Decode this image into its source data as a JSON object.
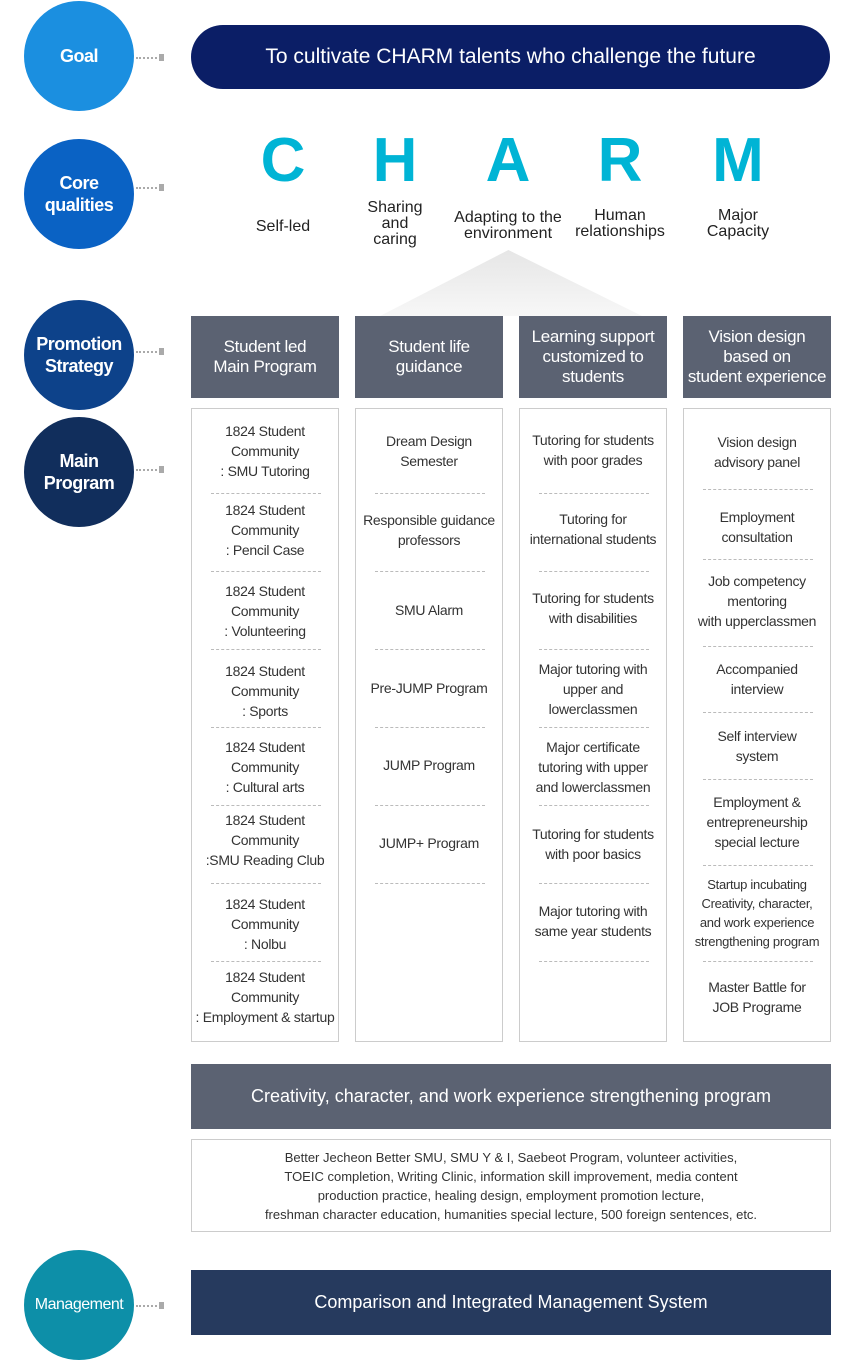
{
  "rows": {
    "goal": "Goal",
    "core": "Core\nqualities",
    "promotion": "Promotion\nStrategy",
    "main": "Main\nProgram",
    "management": "Management"
  },
  "colors": {
    "goal": "#1b8fe0",
    "core": "#0a62c4",
    "promotion": "#0d428a",
    "main": "#112e5c",
    "management": "#0d8fa8",
    "letters": "#00b4d5"
  },
  "goal_text": "To cultivate CHARM talents who challenge the future",
  "qualities": [
    {
      "letter": "C",
      "label": "Self-led"
    },
    {
      "letter": "H",
      "label": "Sharing\nand\ncaring"
    },
    {
      "letter": "A",
      "label": "Adapting to the\nenvironment"
    },
    {
      "letter": "R",
      "label": "Human\nrelationships"
    },
    {
      "letter": "M",
      "label": "Major\nCapacity"
    }
  ],
  "strategies": [
    {
      "title": "Student led\nMain Program",
      "items": [
        "1824 Student\nCommunity\n: SMU  Tutoring",
        "1824 Student\nCommunity\n: Pencil Case",
        "1824 Student\nCommunity\n: Volunteering",
        "1824 Student\nCommunity\n: Sports",
        "1824 Student\nCommunity\n: Cultural arts",
        "1824 Student\nCommunity\n:SMU Reading Club",
        "1824 Student\nCommunity\n: Nolbu",
        "1824 Student\nCommunity\n: Employment & startup"
      ]
    },
    {
      "title": "Student life\nguidance",
      "items": [
        "Dream Design\nSemester",
        "Responsible guidance\nprofessors",
        "SMU Alarm",
        "Pre-JUMP Program",
        "JUMP Program",
        "JUMP+ Program"
      ]
    },
    {
      "title": "Learning support\ncustomized to\nstudents",
      "items": [
        "Tutoring for students\nwith poor grades",
        "Tutoring for\ninternational students",
        "Tutoring for students\nwith disabilities",
        "Major tutoring with\nupper and\nlowerclassmen",
        "Major certificate\ntutoring with upper\nand lowerclassmen",
        "Tutoring for students\nwith poor basics",
        "Major tutoring with\nsame year students"
      ]
    },
    {
      "title": "Vision design\nbased on\nstudent experience",
      "items": [
        "Vision design\nadvisory panel",
        "Employment\nconsultation",
        "Job competency\nmentoring\nwith upperclassmen",
        "Accompanied\ninterview",
        "Self interview\nsystem",
        "Employment &\nentrepreneurship\nspecial lecture",
        "Startup incubating\nCreativity, character,\nand work experience\nstrengthening program",
        "Master Battle for\nJOB Programe"
      ]
    }
  ],
  "creativity_title": "Creativity, character, and work experience strengthening program",
  "creativity_text": "Better Jecheon Better SMU, SMU Y & I, Saebeot Program, volunteer activities,\nTOEIC completion, Writing Clinic, information skill improvement, media content\nproduction practice, healing design, employment promotion lecture,\nfreshman character education, humanities special lecture, 500 foreign sentences, etc.",
  "management_text": "Comparison and Integrated Management System"
}
